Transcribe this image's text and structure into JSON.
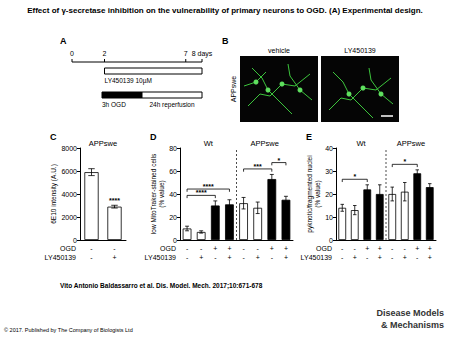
{
  "header": {
    "title": "Effect of γ-secretase inhibition on the vulnerability of primary neurons to OGD. (A) Experimental design."
  },
  "panel_a": {
    "letter": "A",
    "range": [
      0,
      8
    ],
    "ticks": [
      {
        "value": 0,
        "label": "0"
      },
      {
        "value": 2,
        "label": "2"
      },
      {
        "value": 7,
        "label": "7"
      },
      {
        "value": 8,
        "label": "8 days"
      }
    ],
    "treatment": {
      "label": "LY450139 10µM",
      "start": 2,
      "end": 8
    },
    "segments": [
      {
        "label": "3h OGD",
        "color": "#000000"
      },
      {
        "label": "24h reperfusion",
        "color": "#ffffff"
      }
    ]
  },
  "panel_b": {
    "letter": "B",
    "row_label": "APPswe",
    "columns": [
      "vehicle",
      "LY450139"
    ]
  },
  "chart_data": [
    {
      "type": "bar",
      "letter": "C",
      "ylabel": "6E10 intensity (A.U.)",
      "ylim": [
        0,
        8000
      ],
      "yticks": [
        0,
        2000,
        4000,
        6000,
        8000
      ],
      "grid": false,
      "values": [
        5900,
        2900
      ],
      "errors": [
        300,
        120
      ],
      "colors": [
        "#ffffff",
        "#ffffff"
      ],
      "groups": [
        {
          "label": "APPswe",
          "bars": [
            0,
            1
          ]
        }
      ],
      "conditions": [
        {
          "label": "OGD",
          "values": [
            "-",
            "-"
          ]
        },
        {
          "label": "LY450139",
          "values": [
            "-",
            "+"
          ]
        }
      ],
      "annotations": [
        {
          "text": "****",
          "bars": [
            1
          ]
        }
      ]
    },
    {
      "type": "bar",
      "letter": "D",
      "ylabel": "low MitoTraker-stained cells\n(% value)",
      "ylim": [
        0,
        80
      ],
      "yticks": [
        0,
        20,
        40,
        60,
        80
      ],
      "grid": false,
      "values": [
        10,
        7,
        30,
        31,
        32,
        28,
        53,
        35
      ],
      "errors": [
        2,
        1,
        4,
        4,
        5,
        5,
        4,
        3
      ],
      "colors": [
        "#ffffff",
        "#ffffff",
        "#000000",
        "#000000",
        "#ffffff",
        "#ffffff",
        "#000000",
        "#000000"
      ],
      "groups": [
        {
          "label": "Wt",
          "bars": [
            0,
            1,
            2,
            3
          ]
        },
        {
          "label": "APPswe",
          "bars": [
            4,
            5,
            6,
            7
          ]
        }
      ],
      "conditions": [
        {
          "label": "OGD",
          "values": [
            "-",
            "-",
            "+",
            "+",
            "-",
            "-",
            "+",
            "+"
          ]
        },
        {
          "label": "LY450139",
          "values": [
            "-",
            "+",
            "-",
            "+",
            "-",
            "+",
            "-",
            "+"
          ]
        }
      ],
      "annotations": [
        {
          "text": "****",
          "bars": [
            0,
            2
          ]
        },
        {
          "text": "****",
          "bars": [
            0,
            3
          ]
        },
        {
          "text": "***",
          "bars": [
            4,
            6
          ]
        },
        {
          "text": "*",
          "bars": [
            6,
            7
          ]
        }
      ]
    },
    {
      "type": "bar",
      "letter": "E",
      "ylabel": "pyknotic/fragmented nuclei\n(% value)",
      "ylim": [
        0,
        40
      ],
      "yticks": [
        0,
        10,
        20,
        30,
        40
      ],
      "grid": false,
      "values": [
        14,
        13,
        22,
        20,
        20,
        21,
        29,
        23
      ],
      "errors": [
        1.5,
        2,
        2,
        4,
        3,
        4,
        1.5,
        1.5
      ],
      "colors": [
        "#ffffff",
        "#ffffff",
        "#000000",
        "#000000",
        "#ffffff",
        "#ffffff",
        "#000000",
        "#000000"
      ],
      "groups": [
        {
          "label": "Wt",
          "bars": [
            0,
            1,
            2,
            3
          ]
        },
        {
          "label": "APPswe",
          "bars": [
            4,
            5,
            6,
            7
          ]
        }
      ],
      "conditions": [
        {
          "label": "OGD",
          "values": [
            "-",
            "-",
            "+",
            "+",
            "-",
            "-",
            "+",
            "+"
          ]
        },
        {
          "label": "LY450139",
          "values": [
            "-",
            "+",
            "-",
            "+",
            "-",
            "+",
            "-",
            "+"
          ]
        }
      ],
      "annotations": [
        {
          "text": "*",
          "bars": [
            0,
            2
          ]
        },
        {
          "text": "*",
          "bars": [
            4,
            6
          ]
        }
      ]
    }
  ],
  "footer": {
    "citation": "Vito Antonio Baldassarro et al. Dis. Model. Mech. 2017;10:671-678",
    "copyright": "© 2017. Published by The Company of Biologists Ltd",
    "logo": [
      "Disease Models",
      "& Mechanisms"
    ]
  }
}
